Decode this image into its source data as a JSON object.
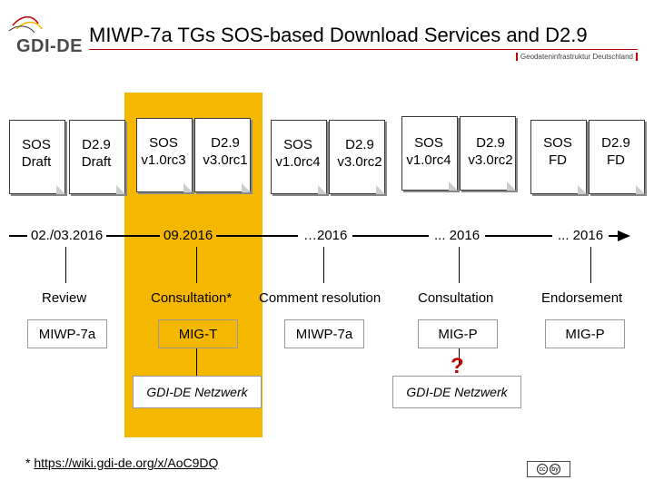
{
  "header": {
    "logo_text": "GDI-DE",
    "title": "MIWP-7a TGs SOS-based Download Services and D2.9",
    "subtitle": "Geodateninfrastruktur Deutschland"
  },
  "documents": [
    {
      "label_a": "SOS",
      "label_b": "Draft"
    },
    {
      "label_a": "D2.9",
      "label_b": "Draft"
    },
    {
      "label_a": "SOS",
      "label_b": "v1.0rc3"
    },
    {
      "label_a": "D2.9",
      "label_b": "v3.0rc1"
    },
    {
      "label_a": "SOS",
      "label_b": "v1.0rc4"
    },
    {
      "label_a": "D2.9",
      "label_b": "v3.0rc2"
    },
    {
      "label_a": "SOS",
      "label_b": "v1.0rc4"
    },
    {
      "label_a": "D2.9",
      "label_b": "v3.0rc2"
    },
    {
      "label_a": "SOS",
      "label_b": "FD"
    },
    {
      "label_a": "D2.9",
      "label_b": "FD"
    }
  ],
  "timeline": {
    "dates": [
      "02./03.2016",
      "09.2016",
      "…2016",
      "... 2016",
      "... 2016"
    ],
    "phases": [
      "Review",
      "Consultation*",
      "Comment resolution",
      "Consultation",
      "Endorsement"
    ],
    "owners": [
      "MIWP-7a",
      "MIG-T",
      "MIWP-7a",
      "MIG-P",
      "MIG-P"
    ]
  },
  "networks": {
    "left": "GDI-DE Netzwerk",
    "right": "GDI-DE Netzwerk",
    "question_mark": "?"
  },
  "footnote": {
    "prefix": "* ",
    "link": "https://wiki.gdi-de.org/x/AoC9DQ"
  },
  "license": {
    "icon_a": "cc",
    "icon_b": "by"
  }
}
